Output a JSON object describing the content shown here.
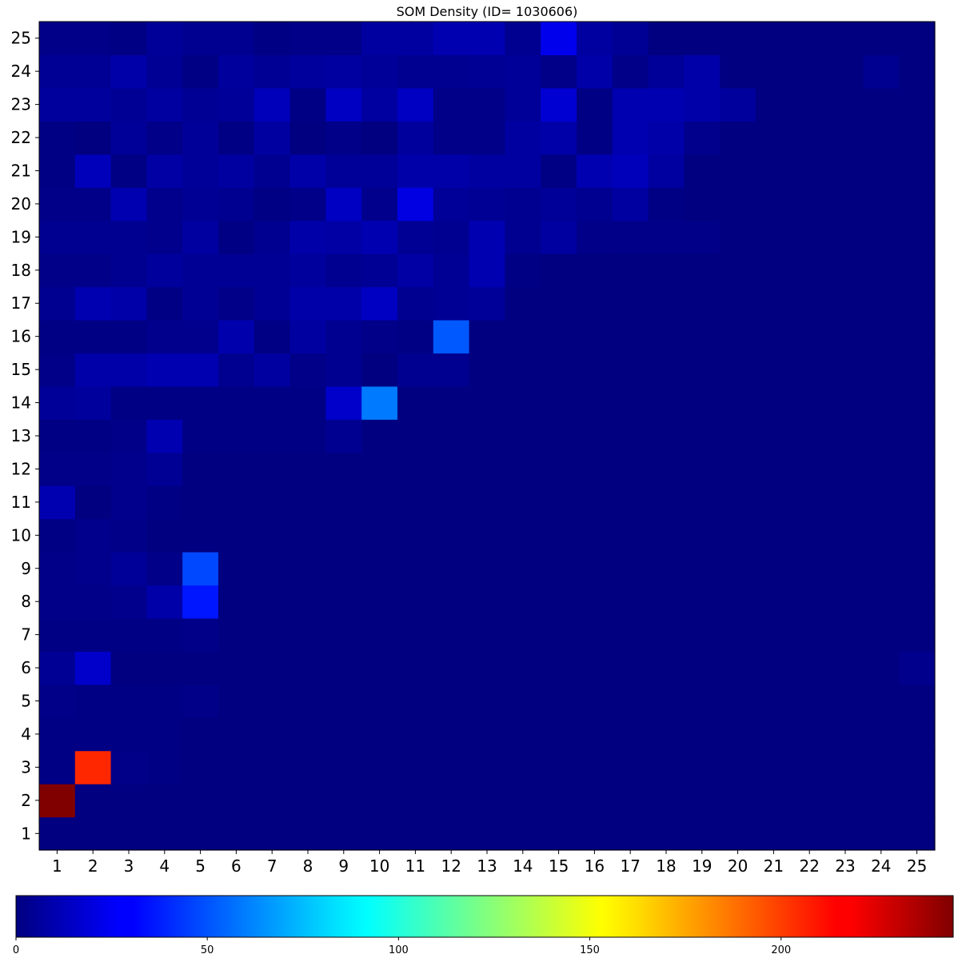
{
  "chart_data": {
    "type": "heatmap",
    "title": "SOM Density  (ID= 1030606)",
    "x_labels": [
      "1",
      "2",
      "3",
      "4",
      "5",
      "6",
      "7",
      "8",
      "9",
      "10",
      "11",
      "12",
      "13",
      "14",
      "15",
      "16",
      "17",
      "18",
      "19",
      "20",
      "21",
      "22",
      "23",
      "24",
      "25"
    ],
    "y_labels": [
      "1",
      "2",
      "3",
      "4",
      "5",
      "6",
      "7",
      "8",
      "9",
      "10",
      "11",
      "12",
      "13",
      "14",
      "15",
      "16",
      "17",
      "18",
      "19",
      "20",
      "21",
      "22",
      "23",
      "24",
      "25"
    ],
    "colormap": "jet",
    "vmin": 0,
    "vmax": 245,
    "colorbar": {
      "ticks": [
        0,
        50,
        100,
        150,
        200
      ],
      "tick_labels": [
        "0",
        "50",
        "100",
        "150",
        "200"
      ],
      "orientation": "horizontal",
      "placement": "bottom"
    },
    "grid": false,
    "values": [
      [
        0,
        0,
        0,
        0,
        0,
        0,
        0,
        0,
        0,
        0,
        0,
        0,
        0,
        0,
        0,
        0,
        0,
        0,
        0,
        0,
        0,
        0,
        0,
        0,
        0
      ],
      [
        245,
        0,
        0,
        0,
        0,
        0,
        0,
        0,
        0,
        0,
        0,
        0,
        0,
        0,
        0,
        0,
        0,
        0,
        0,
        0,
        0,
        0,
        0,
        0,
        0
      ],
      [
        1,
        205,
        2,
        1,
        0,
        0,
        0,
        0,
        0,
        0,
        0,
        0,
        0,
        0,
        0,
        0,
        0,
        0,
        0,
        0,
        0,
        0,
        0,
        0,
        0
      ],
      [
        1,
        1,
        1,
        1,
        0,
        0,
        0,
        0,
        0,
        0,
        0,
        0,
        0,
        0,
        0,
        0,
        0,
        0,
        0,
        0,
        0,
        0,
        0,
        0,
        0
      ],
      [
        2,
        1,
        1,
        1,
        2,
        0,
        0,
        0,
        0,
        0,
        0,
        0,
        0,
        0,
        0,
        0,
        0,
        0,
        0,
        0,
        0,
        0,
        0,
        0,
        0
      ],
      [
        5,
        18,
        0,
        0,
        0,
        0,
        0,
        0,
        0,
        0,
        0,
        0,
        0,
        0,
        0,
        0,
        0,
        0,
        0,
        0,
        0,
        0,
        0,
        0,
        3
      ],
      [
        1,
        1,
        1,
        1,
        2,
        0,
        0,
        0,
        0,
        0,
        0,
        0,
        0,
        0,
        0,
        0,
        0,
        0,
        0,
        0,
        0,
        0,
        0,
        0,
        0
      ],
      [
        2,
        2,
        3,
        10,
        36,
        0,
        0,
        0,
        0,
        0,
        0,
        0,
        0,
        0,
        0,
        0,
        0,
        0,
        0,
        0,
        0,
        0,
        0,
        0,
        0
      ],
      [
        2,
        3,
        6,
        2,
        48,
        0,
        0,
        0,
        0,
        0,
        0,
        0,
        0,
        0,
        0,
        0,
        0,
        0,
        0,
        0,
        0,
        0,
        0,
        0,
        0
      ],
      [
        1,
        3,
        2,
        0,
        0,
        0,
        0,
        0,
        0,
        0,
        0,
        0,
        0,
        0,
        0,
        0,
        0,
        0,
        0,
        0,
        0,
        0,
        0,
        0,
        0
      ],
      [
        12,
        0,
        3,
        1,
        0,
        0,
        0,
        0,
        0,
        0,
        0,
        0,
        0,
        0,
        0,
        0,
        0,
        0,
        0,
        0,
        0,
        0,
        0,
        0,
        0
      ],
      [
        2,
        2,
        3,
        5,
        0,
        0,
        0,
        0,
        0,
        0,
        0,
        0,
        0,
        0,
        0,
        0,
        0,
        0,
        0,
        0,
        0,
        0,
        0,
        0,
        0
      ],
      [
        1,
        1,
        2,
        12,
        1,
        1,
        1,
        1,
        4,
        0,
        0,
        0,
        0,
        0,
        0,
        0,
        0,
        0,
        0,
        0,
        0,
        0,
        0,
        0,
        0
      ],
      [
        6,
        7,
        1,
        1,
        1,
        1,
        1,
        1,
        18,
        60,
        0,
        0,
        0,
        0,
        0,
        0,
        0,
        0,
        0,
        0,
        0,
        0,
        0,
        0,
        0
      ],
      [
        2,
        10,
        10,
        12,
        12,
        4,
        8,
        2,
        4,
        0,
        4,
        4,
        0,
        0,
        0,
        0,
        0,
        0,
        0,
        0,
        0,
        0,
        0,
        0,
        0
      ],
      [
        1,
        1,
        1,
        3,
        3,
        11,
        1,
        8,
        4,
        2,
        1,
        52,
        0,
        0,
        0,
        0,
        0,
        0,
        0,
        0,
        0,
        0,
        0,
        0,
        0
      ],
      [
        4,
        12,
        10,
        1,
        5,
        2,
        5,
        10,
        10,
        16,
        4,
        5,
        6,
        0,
        0,
        0,
        0,
        0,
        0,
        0,
        0,
        0,
        0,
        0,
        0
      ],
      [
        2,
        2,
        4,
        7,
        5,
        5,
        5,
        7,
        4,
        5,
        9,
        5,
        12,
        1,
        0,
        0,
        0,
        0,
        0,
        0,
        0,
        0,
        0,
        0,
        0
      ],
      [
        4,
        4,
        4,
        3,
        8,
        1,
        4,
        10,
        9,
        12,
        5,
        4,
        12,
        4,
        8,
        2,
        2,
        2,
        2,
        0,
        0,
        0,
        0,
        0,
        0
      ],
      [
        2,
        2,
        12,
        3,
        5,
        4,
        1,
        2,
        16,
        3,
        24,
        6,
        5,
        4,
        6,
        4,
        8,
        1,
        0,
        0,
        0,
        0,
        0,
        0,
        0
      ],
      [
        1,
        14,
        1,
        9,
        6,
        8,
        4,
        10,
        6,
        6,
        10,
        10,
        8,
        8,
        1,
        12,
        14,
        8,
        0,
        0,
        0,
        0,
        0,
        0,
        0
      ],
      [
        1,
        0,
        6,
        2,
        6,
        1,
        8,
        0,
        2,
        0,
        7,
        2,
        2,
        8,
        10,
        1,
        12,
        10,
        3,
        0,
        0,
        0,
        0,
        0,
        0
      ],
      [
        7,
        7,
        5,
        8,
        5,
        6,
        14,
        1,
        16,
        8,
        16,
        2,
        2,
        6,
        20,
        1,
        12,
        12,
        10,
        7,
        0,
        0,
        0,
        0,
        0
      ],
      [
        5,
        5,
        10,
        5,
        1,
        7,
        5,
        7,
        8,
        6,
        4,
        4,
        5,
        6,
        2,
        10,
        2,
        6,
        10,
        0,
        0,
        0,
        0,
        4,
        0
      ],
      [
        2,
        2,
        1,
        6,
        4,
        4,
        1,
        2,
        2,
        8,
        8,
        12,
        12,
        4,
        26,
        8,
        5,
        0,
        0,
        0,
        0,
        0,
        0,
        0,
        0
      ]
    ]
  }
}
